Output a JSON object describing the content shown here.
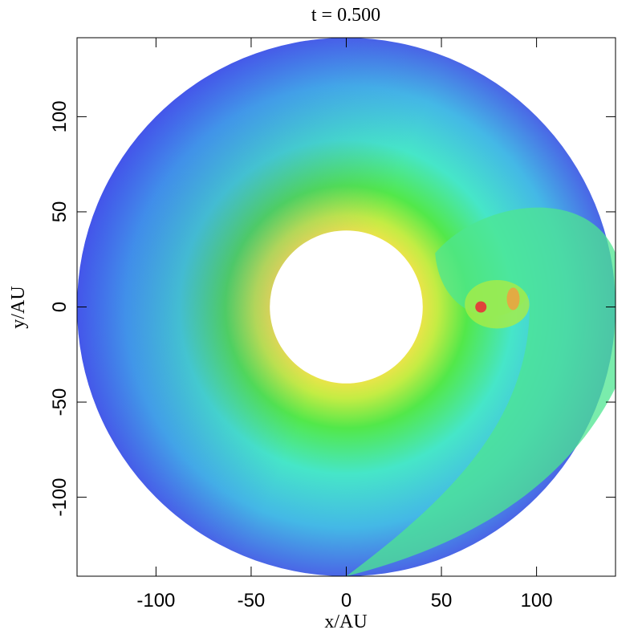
{
  "chart_data": {
    "type": "image",
    "title": "t = 0.500",
    "xlabel": "x/AU",
    "ylabel": "y/AU",
    "xlim": [
      -141.5,
      141.5
    ],
    "ylim": [
      -141.5,
      141.5
    ],
    "xticks": [
      -100,
      -50,
      0,
      50,
      100
    ],
    "yticks": [
      -100,
      -50,
      0,
      50,
      100
    ]
  }
}
